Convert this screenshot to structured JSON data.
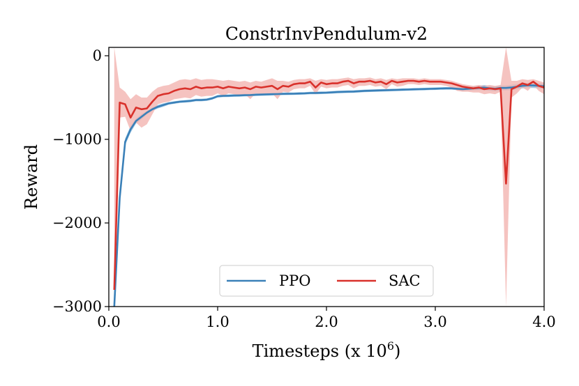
{
  "chart_data": {
    "type": "line",
    "title": "ConstrInvPendulum-v2",
    "xlabel": "Timesteps (x 10",
    "xlabel_sup": "6",
    "xlabel_close": ")",
    "ylabel": "Reward",
    "xlim": [
      0.0,
      4.0
    ],
    "ylim": [
      -3000,
      100
    ],
    "xticks": [
      0.0,
      1.0,
      2.0,
      3.0,
      4.0
    ],
    "xtick_labels": [
      "0.0",
      "1.0",
      "2.0",
      "3.0",
      "4.0"
    ],
    "yticks": [
      0,
      -1000,
      -2000,
      -3000
    ],
    "ytick_labels": [
      "0",
      "−1000",
      "−2000",
      "−3000"
    ],
    "grid": false,
    "legend_position": "bottom-center",
    "series": [
      {
        "name": "PPO",
        "color": "#3a80b8",
        "band_color": "#8fbfe3",
        "x": [
          0.05,
          0.1,
          0.15,
          0.2,
          0.25,
          0.3,
          0.35,
          0.4,
          0.45,
          0.5,
          0.55,
          0.6,
          0.65,
          0.7,
          0.75,
          0.8,
          0.85,
          0.9,
          0.95,
          1.0,
          1.05,
          1.1,
          1.15,
          1.2,
          1.25,
          1.3,
          1.35,
          1.4,
          1.45,
          1.5,
          1.55,
          1.6,
          1.65,
          1.7,
          1.75,
          1.8,
          1.85,
          1.9,
          1.95,
          2.0,
          2.05,
          2.1,
          2.15,
          2.2,
          2.25,
          2.3,
          2.35,
          2.4,
          2.45,
          2.5,
          2.55,
          2.6,
          2.65,
          2.7,
          2.75,
          2.8,
          2.85,
          2.9,
          2.95,
          3.0,
          3.05,
          3.1,
          3.15,
          3.2,
          3.25,
          3.3,
          3.35,
          3.4,
          3.45,
          3.5,
          3.55,
          3.6,
          3.65,
          3.7,
          3.75,
          3.8,
          3.85,
          3.9,
          3.95,
          4.0
        ],
        "values": [
          -3000,
          -1700,
          -1030,
          -880,
          -780,
          -730,
          -680,
          -640,
          -610,
          -590,
          -570,
          -560,
          -550,
          -545,
          -540,
          -530,
          -530,
          -525,
          -510,
          -485,
          -480,
          -478,
          -476,
          -474,
          -472,
          -470,
          -466,
          -464,
          -462,
          -460,
          -458,
          -456,
          -455,
          -454,
          -452,
          -450,
          -446,
          -445,
          -443,
          -442,
          -438,
          -434,
          -432,
          -430,
          -428,
          -424,
          -420,
          -418,
          -416,
          -414,
          -412,
          -410,
          -408,
          -406,
          -404,
          -402,
          -400,
          -398,
          -396,
          -394,
          -392,
          -390,
          -390,
          -395,
          -400,
          -395,
          -390,
          -385,
          -380,
          -390,
          -395,
          -385,
          -385,
          -380,
          -370,
          -360,
          -355,
          -355,
          -360,
          -365
        ],
        "upper": [
          -3000,
          -1650,
          -990,
          -840,
          -750,
          -700,
          -660,
          -620,
          -590,
          -570,
          -555,
          -545,
          -535,
          -530,
          -525,
          -515,
          -515,
          -510,
          -495,
          -470,
          -465,
          -463,
          -461,
          -459,
          -457,
          -455,
          -451,
          -449,
          -447,
          -445,
          -443,
          -441,
          -440,
          -439,
          -437,
          -435,
          -431,
          -430,
          -428,
          -427,
          -423,
          -419,
          -417,
          -415,
          -413,
          -409,
          -405,
          -403,
          -401,
          -399,
          -397,
          -395,
          -393,
          -391,
          -389,
          -387,
          -385,
          -383,
          -381,
          -379,
          -377,
          -375,
          -375,
          -378,
          -380,
          -372,
          -365,
          -358,
          -350,
          -360,
          -365,
          -355,
          -355,
          -348,
          -338,
          -330,
          -325,
          -325,
          -330,
          -335
        ],
        "lower": [
          -3000,
          -1750,
          -1070,
          -920,
          -810,
          -760,
          -700,
          -660,
          -630,
          -610,
          -585,
          -575,
          -565,
          -560,
          -555,
          -545,
          -545,
          -540,
          -525,
          -500,
          -495,
          -493,
          -491,
          -489,
          -487,
          -485,
          -481,
          -479,
          -477,
          -475,
          -473,
          -471,
          -470,
          -469,
          -467,
          -465,
          -461,
          -460,
          -458,
          -457,
          -453,
          -449,
          -447,
          -445,
          -443,
          -439,
          -435,
          -433,
          -431,
          -429,
          -427,
          -425,
          -423,
          -421,
          -419,
          -417,
          -415,
          -413,
          -411,
          -409,
          -407,
          -405,
          -405,
          -412,
          -420,
          -418,
          -415,
          -412,
          -410,
          -420,
          -425,
          -415,
          -415,
          -412,
          -402,
          -390,
          -385,
          -385,
          -390,
          -395
        ]
      },
      {
        "name": "SAC",
        "color": "#d9312b",
        "band_color": "#f2b4b0",
        "x": [
          0.05,
          0.1,
          0.15,
          0.2,
          0.25,
          0.3,
          0.35,
          0.4,
          0.45,
          0.5,
          0.55,
          0.6,
          0.65,
          0.7,
          0.75,
          0.8,
          0.85,
          0.9,
          0.95,
          1.0,
          1.05,
          1.1,
          1.15,
          1.2,
          1.25,
          1.3,
          1.35,
          1.4,
          1.45,
          1.5,
          1.55,
          1.6,
          1.65,
          1.7,
          1.75,
          1.8,
          1.85,
          1.9,
          1.95,
          2.0,
          2.05,
          2.1,
          2.15,
          2.2,
          2.25,
          2.3,
          2.35,
          2.4,
          2.45,
          2.5,
          2.55,
          2.6,
          2.65,
          2.7,
          2.75,
          2.8,
          2.85,
          2.9,
          2.95,
          3.0,
          3.05,
          3.1,
          3.15,
          3.2,
          3.25,
          3.3,
          3.35,
          3.4,
          3.45,
          3.5,
          3.55,
          3.6,
          3.65,
          3.7,
          3.75,
          3.8,
          3.85,
          3.9,
          3.95,
          4.0
        ],
        "values": [
          -2800,
          -560,
          -580,
          -740,
          -620,
          -640,
          -630,
          -550,
          -480,
          -460,
          -450,
          -420,
          -400,
          -390,
          -400,
          -370,
          -390,
          -380,
          -380,
          -370,
          -390,
          -370,
          -380,
          -390,
          -380,
          -400,
          -370,
          -380,
          -370,
          -360,
          -400,
          -360,
          -370,
          -340,
          -330,
          -330,
          -310,
          -380,
          -320,
          -340,
          -330,
          -330,
          -310,
          -300,
          -330,
          -310,
          -310,
          -300,
          -320,
          -310,
          -340,
          -300,
          -320,
          -310,
          -300,
          -300,
          -310,
          -300,
          -310,
          -310,
          -310,
          -320,
          -330,
          -350,
          -370,
          -380,
          -390,
          -380,
          -400,
          -390,
          -400,
          -390,
          -1530,
          -400,
          -370,
          -330,
          -350,
          -310,
          -360,
          -380
        ],
        "upper": [
          100,
          -380,
          -430,
          -520,
          -460,
          -500,
          -500,
          -430,
          -380,
          -360,
          -350,
          -320,
          -290,
          -280,
          -290,
          -270,
          -290,
          -280,
          -280,
          -290,
          -300,
          -290,
          -300,
          -310,
          -300,
          -320,
          -300,
          -310,
          -290,
          -270,
          -300,
          -300,
          -310,
          -290,
          -280,
          -280,
          -270,
          -300,
          -280,
          -290,
          -280,
          -280,
          -270,
          -260,
          -280,
          -270,
          -270,
          -260,
          -280,
          -270,
          -290,
          -270,
          -280,
          -270,
          -270,
          -270,
          -280,
          -270,
          -280,
          -280,
          -280,
          -290,
          -300,
          -320,
          -340,
          -350,
          -360,
          -350,
          -360,
          -350,
          -360,
          -350,
          100,
          -300,
          -300,
          -280,
          -290,
          -280,
          -300,
          -320
        ],
        "lower": [
          -3000,
          -740,
          -730,
          -900,
          -800,
          -860,
          -820,
          -700,
          -580,
          -560,
          -550,
          -520,
          -510,
          -500,
          -510,
          -470,
          -490,
          -480,
          -480,
          -450,
          -480,
          -450,
          -460,
          -470,
          -460,
          -520,
          -450,
          -460,
          -450,
          -450,
          -520,
          -430,
          -440,
          -400,
          -390,
          -390,
          -360,
          -460,
          -370,
          -390,
          -380,
          -380,
          -360,
          -350,
          -390,
          -360,
          -360,
          -350,
          -370,
          -360,
          -400,
          -340,
          -370,
          -360,
          -340,
          -340,
          -350,
          -340,
          -350,
          -350,
          -350,
          -360,
          -380,
          -420,
          -430,
          -430,
          -440,
          -440,
          -460,
          -450,
          -460,
          -430,
          -3000,
          -500,
          -450,
          -380,
          -420,
          -350,
          -420,
          -460
        ]
      }
    ]
  }
}
